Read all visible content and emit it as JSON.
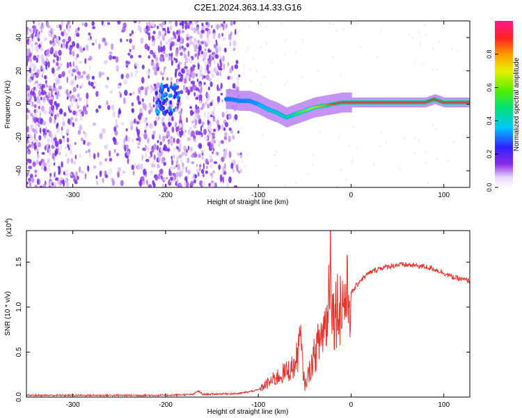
{
  "page": {
    "title": "C2E1.2024.363.14.33.G16"
  },
  "chart_data": [
    {
      "type": "heatmap",
      "title": "C2E1.2024.363.14.33.G16",
      "xlabel": "Height of straight line (km)",
      "ylabel": "Frequency (Hz)",
      "xlim": [
        -350,
        128
      ],
      "ylim": [
        -50,
        50
      ],
      "x_ticks": [
        -300,
        -200,
        -100,
        0,
        100
      ],
      "y_ticks": [
        -40,
        -20,
        0,
        20,
        40
      ],
      "colorbar": {
        "label": "Normalized spectral amplitude",
        "range": [
          0,
          1
        ],
        "ticks": [
          0.0,
          0.2,
          0.4,
          0.6,
          0.8
        ],
        "tick_labels": [
          "0.0",
          "0.2",
          "0.4",
          "0.6",
          "0.8"
        ]
      },
      "doppler_trace": {
        "x": [
          -130,
          -120,
          -110,
          -100,
          -90,
          -80,
          -70,
          -60,
          -50,
          -40,
          -30,
          -20,
          -10,
          0,
          20,
          40,
          60,
          80,
          90,
          100,
          110,
          128
        ],
        "y": [
          3,
          2,
          2,
          0,
          -3,
          -5,
          -8,
          -6,
          -4,
          -2,
          -1,
          0,
          1,
          1,
          1,
          1,
          1,
          1,
          3,
          1,
          1,
          1
        ]
      }
    },
    {
      "type": "line",
      "xlabel": "Height of straight line (km)",
      "ylabel": "SNR (10 * v/v)",
      "scale_label": "(x10",
      "scale_exponent": "4",
      "scale_suffix": ")",
      "xlim": [
        -350,
        128
      ],
      "ylim": [
        0,
        1.85
      ],
      "x_ticks": [
        -300,
        -200,
        -100,
        0,
        100
      ],
      "y_ticks": [
        0.0,
        0.5,
        1.0,
        1.5
      ],
      "y_tick_labels": [
        "0.0",
        "0.5",
        "1.0",
        "1.5"
      ],
      "color": "#e8322c",
      "series": [
        {
          "name": "SNR",
          "x": [
            -350,
            -300,
            -250,
            -200,
            -170,
            -165,
            -160,
            -120,
            -100,
            -90,
            -80,
            -70,
            -60,
            -55,
            -50,
            -40,
            -30,
            -25,
            -22,
            -20,
            -15,
            -10,
            -5,
            0,
            10,
            20,
            30,
            40,
            50,
            60,
            70,
            80,
            90,
            100,
            110,
            128
          ],
          "y": [
            0.02,
            0.02,
            0.02,
            0.02,
            0.03,
            0.07,
            0.03,
            0.04,
            0.08,
            0.15,
            0.22,
            0.28,
            0.35,
            0.65,
            0.12,
            0.45,
            0.75,
            0.9,
            1.85,
            0.9,
            1.0,
            1.05,
            1.1,
            1.15,
            1.3,
            1.38,
            1.43,
            1.45,
            1.47,
            1.47,
            1.46,
            1.45,
            1.42,
            1.38,
            1.33,
            1.29
          ]
        }
      ]
    }
  ]
}
